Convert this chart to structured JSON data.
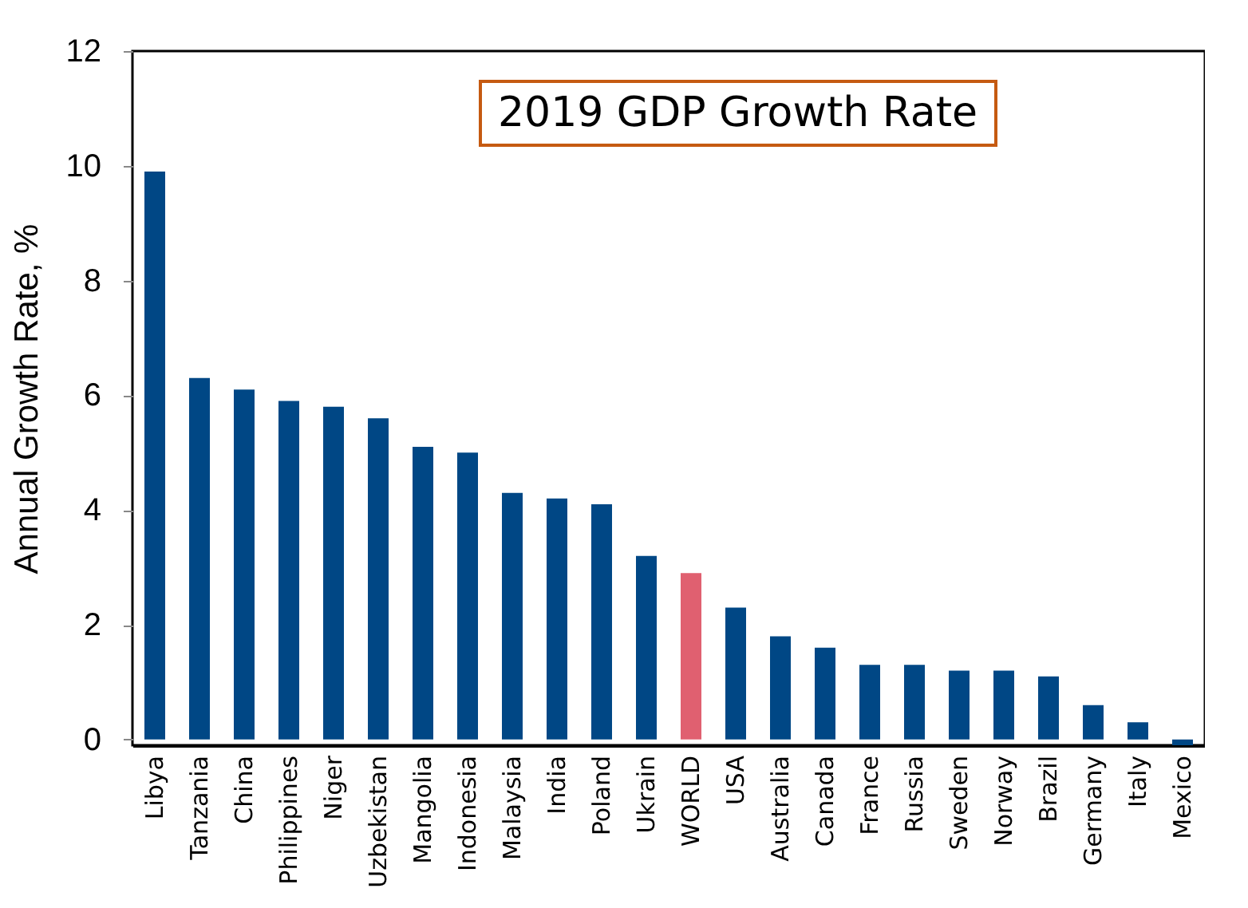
{
  "chart_data": {
    "type": "bar",
    "title": "2019 GDP Growth Rate",
    "ylabel": "Annual Growth Rate, %",
    "categories": [
      "Libya",
      "Tanzania",
      "China",
      "Philippines",
      "Niger",
      "Uzbekistan",
      "Mangolia",
      "Indonesia",
      "Malaysia",
      "India",
      "Poland",
      "Ukrain",
      "WORLD",
      "USA",
      "Australia",
      "Canada",
      "France",
      "Russia",
      "Sweden",
      "Norway",
      "Brazil",
      "Germany",
      "Italy",
      "Mexico"
    ],
    "values": [
      9.9,
      6.3,
      6.1,
      5.9,
      5.8,
      5.6,
      5.1,
      5.0,
      4.3,
      4.2,
      4.1,
      3.2,
      2.9,
      2.3,
      1.8,
      1.6,
      1.3,
      1.3,
      1.2,
      1.2,
      1.1,
      0.6,
      0.3,
      -0.1
    ],
    "colors": [
      "#004785",
      "#004785",
      "#004785",
      "#004785",
      "#004785",
      "#004785",
      "#004785",
      "#004785",
      "#004785",
      "#004785",
      "#004785",
      "#004785",
      "#e06070",
      "#004785",
      "#004785",
      "#004785",
      "#004785",
      "#004785",
      "#004785",
      "#004785",
      "#004785",
      "#004785",
      "#004785",
      "#004785"
    ],
    "ylim": [
      -0.1,
      12
    ],
    "yticks": [
      0,
      2,
      4,
      6,
      8,
      10,
      12
    ],
    "grid": false
  }
}
